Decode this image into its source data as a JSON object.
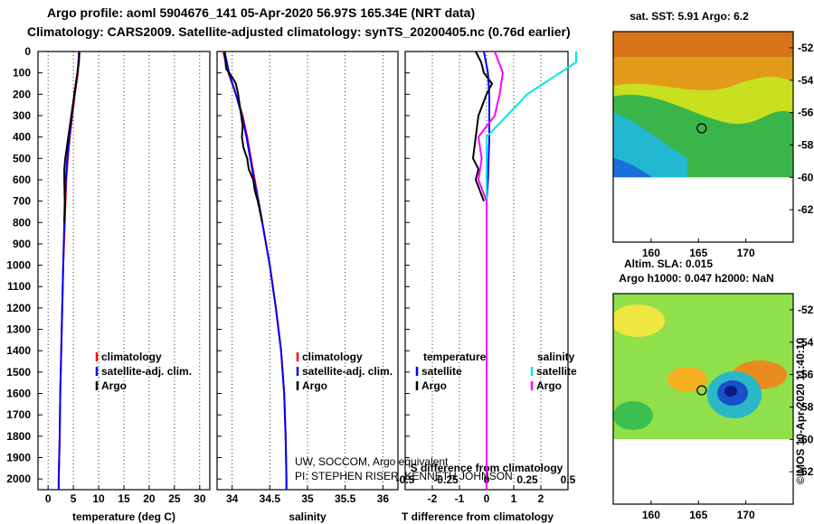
{
  "header": {
    "line1": "Argo profile: aoml 5904676_141 05-Apr-2020 56.97S 165.34E (NRT data)",
    "line2": "Climatology: CARS2009. Satellite-adjusted climatology: synTS_20200405.nc (0.76d earlier)"
  },
  "colors": {
    "clim": "#ff0000",
    "sat": "#0000ff",
    "argo": "#000000",
    "sal_sat": "#00e5e5",
    "sal_argo": "#ff00ff"
  },
  "chart_data": [
    {
      "type": "line",
      "name": "temperature",
      "xlabel": "temperature (deg C)",
      "xlim": [
        -2,
        32
      ],
      "ylim": [
        0,
        2050
      ],
      "xticks": [
        "0",
        "5",
        "10",
        "15",
        "20",
        "25",
        "30"
      ],
      "yticks": [
        "0",
        "100",
        "200",
        "300",
        "400",
        "500",
        "600",
        "700",
        "800",
        "900",
        "1000",
        "1100",
        "1200",
        "1300",
        "1400",
        "1500",
        "1600",
        "1700",
        "1800",
        "1900",
        "2000"
      ],
      "legend": [
        "climatology",
        "satellite-adj. clim.",
        "Argo"
      ],
      "series": [
        {
          "name": "climatology",
          "depth": [
            0,
            50,
            100,
            200,
            300,
            400,
            500,
            600,
            800,
            1000,
            1200,
            1400,
            1600,
            1800,
            2000,
            2050
          ],
          "values": [
            6.1,
            6.0,
            5.9,
            5.3,
            4.8,
            4.3,
            3.9,
            3.6,
            3.3,
            3.0,
            2.8,
            2.6,
            2.4,
            2.3,
            2.1,
            2.1
          ]
        },
        {
          "name": "satellite-adj. clim.",
          "depth": [
            0,
            50,
            100,
            200,
            300,
            400,
            500,
            600,
            800,
            1000,
            1200,
            1400,
            1600,
            1800,
            2000,
            2050
          ],
          "values": [
            6.2,
            6.0,
            5.8,
            5.2,
            4.7,
            4.2,
            3.8,
            3.5,
            3.2,
            3.0,
            2.8,
            2.6,
            2.4,
            2.3,
            2.1,
            2.1
          ]
        },
        {
          "name": "Argo",
          "depth": [
            0,
            50,
            100,
            150,
            200,
            300,
            400,
            500,
            550,
            600,
            700,
            800
          ],
          "values": [
            6.2,
            6.1,
            5.8,
            5.5,
            5.2,
            4.6,
            4.0,
            3.4,
            3.2,
            3.2,
            3.3,
            3.2
          ]
        }
      ]
    },
    {
      "type": "line",
      "name": "salinity",
      "xlabel": "salinity",
      "xlim": [
        33.8,
        36.2
      ],
      "ylim": [
        0,
        2050
      ],
      "xticks": [
        "34",
        "34.5",
        "35",
        "35.5",
        "36"
      ],
      "legend": [
        "climatology",
        "satellite-adj. clim.",
        "Argo"
      ],
      "series": [
        {
          "name": "climatology",
          "depth": [
            0,
            100,
            200,
            300,
            400,
            500,
            600,
            700,
            800,
            1000,
            1200,
            1400,
            1600,
            1800,
            2000,
            2050
          ],
          "values": [
            33.88,
            33.95,
            34.05,
            34.14,
            34.2,
            34.25,
            34.3,
            34.35,
            34.4,
            34.5,
            34.58,
            34.65,
            34.69,
            34.71,
            34.72,
            34.72
          ]
        },
        {
          "name": "satellite-adj. clim.",
          "depth": [
            0,
            100,
            200,
            300,
            400,
            500,
            600,
            700,
            800,
            1000,
            1200,
            1400,
            1600,
            1800,
            2000,
            2050
          ],
          "values": [
            33.9,
            33.96,
            34.05,
            34.13,
            34.19,
            34.24,
            34.29,
            34.35,
            34.4,
            34.5,
            34.58,
            34.65,
            34.69,
            34.71,
            34.72,
            34.72
          ]
        },
        {
          "name": "Argo",
          "depth": [
            0,
            80,
            120,
            150,
            200,
            250,
            300,
            350,
            400,
            450,
            500,
            550,
            600,
            650,
            700,
            750,
            800
          ],
          "values": [
            33.9,
            33.92,
            34.0,
            34.05,
            34.08,
            34.1,
            34.12,
            34.14,
            34.13,
            34.15,
            34.2,
            34.22,
            34.28,
            34.3,
            34.34,
            34.37,
            34.4
          ]
        }
      ]
    },
    {
      "type": "line",
      "name": "difference",
      "xlabel": "T difference from climatology",
      "inner_label": "S difference from climatology",
      "xlim": [
        -3,
        3
      ],
      "ylim": [
        0,
        2050
      ],
      "xticks": [
        "-2",
        "-1",
        "0",
        "1",
        "2"
      ],
      "inner_ticks": [
        "-0.5",
        "-0.25",
        "0",
        "0.25",
        "0.5"
      ],
      "legend_titles": [
        "temperature",
        "salinity"
      ],
      "legend_left": [
        "satellite",
        "Argo"
      ],
      "legend_right": [
        "satellite",
        "Argo"
      ],
      "series": [
        {
          "name": "T satellite",
          "depth": [
            0,
            100,
            200,
            400,
            600,
            700,
            800,
            1000,
            1400,
            2000,
            2050
          ],
          "values": [
            -0.1,
            0.05,
            0.1,
            0.1,
            0.05,
            0.0,
            0.0,
            0.0,
            0.0,
            0.0,
            0.0
          ]
        },
        {
          "name": "T Argo",
          "depth": [
            0,
            50,
            100,
            150,
            200,
            300,
            400,
            500,
            550,
            600,
            700
          ],
          "values": [
            -0.4,
            -0.2,
            -0.1,
            0.2,
            0.0,
            -0.3,
            -0.4,
            -0.5,
            -0.3,
            -0.4,
            -0.1
          ]
        },
        {
          "name": "S satellite",
          "depth": [
            0,
            50,
            100,
            200,
            400,
            600,
            800,
            2000,
            2050
          ],
          "values": [
            0.55,
            0.55,
            0.45,
            0.25,
            0.0,
            0.0,
            0.0,
            0.0,
            0.0
          ]
        },
        {
          "name": "S Argo",
          "depth": [
            0,
            100,
            200,
            300,
            400,
            500,
            600,
            700,
            800,
            1000,
            1300,
            1800,
            2050
          ],
          "values": [
            0.05,
            0.1,
            0.08,
            0.05,
            -0.05,
            -0.03,
            -0.05,
            0.0,
            0.0,
            0.0,
            0.0,
            0.0,
            0.0
          ]
        }
      ]
    },
    {
      "type": "heatmap",
      "name": "sst_map",
      "title": "sat. SST: 5.91 Argo: 6.2",
      "xticks": [
        "160",
        "165",
        "170"
      ],
      "yticks": [
        "-52",
        "-54",
        "-56",
        "-58",
        "-60",
        "-62"
      ]
    },
    {
      "type": "heatmap",
      "name": "sla_map",
      "title_lines": [
        "Altim. SLA: 0.015",
        "Argo h1000: 0.047 h2000: NaN"
      ],
      "xticks": [
        "160",
        "165",
        "170"
      ],
      "yticks": [
        "-52",
        "-54",
        "-56",
        "-58",
        "-60",
        "-62"
      ]
    }
  ],
  "credits": {
    "line1": "UW, SOCCOM, Argo equivalent",
    "line2": "PI: STEPHEN RISER, KENNETH JOHNSON"
  },
  "watermark": "©IMOS 10-Apr-2020 11:40:10"
}
